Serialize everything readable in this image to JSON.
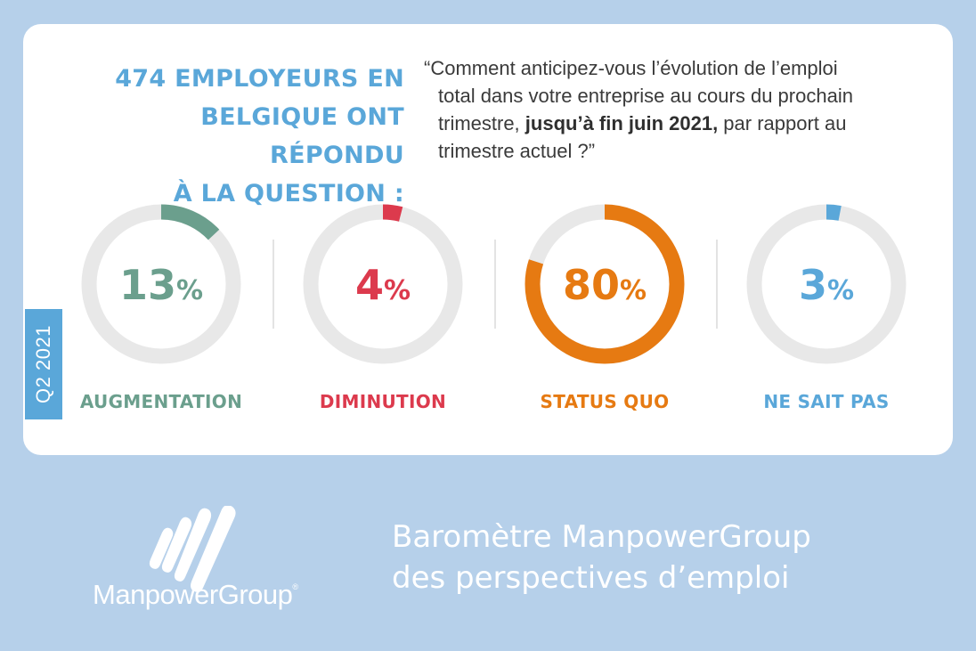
{
  "header": {
    "headline_lines": [
      "474 EMPLOYEURS EN",
      "BELGIQUE ONT RÉPONDU",
      "À LA QUESTION :"
    ],
    "question": {
      "line1": "“Comment anticipez-vous l’évolution de l’emploi",
      "line2": "total dans votre entreprise au cours du prochain",
      "line3_pre": "trimestre, ",
      "line3_bold": "jusqu’à fin juin 2021,",
      "line3_post": " par rapport au",
      "line4": "trimestre actuel ?”"
    }
  },
  "quarter_tab": "Q2 2021",
  "chart_data": {
    "type": "pie",
    "subtype": "donut-set",
    "series": [
      {
        "name": "AUGMENTATION",
        "value": 13,
        "display": "13%",
        "color": "#6b9f8d"
      },
      {
        "name": "DIMINUTION",
        "value": 4,
        "display": "4%",
        "color": "#dc3a4d"
      },
      {
        "name": "STATUS QUO",
        "value": 80,
        "display": "80%",
        "color": "#e67a12"
      },
      {
        "name": "NE SAIT PAS",
        "value": 3,
        "display": "3%",
        "color": "#5aa7d9"
      }
    ],
    "track_color": "#e8e8e8"
  },
  "footer": {
    "brand": "ManpowerGroup",
    "title_lines": [
      "Baromètre ManpowerGroup",
      "des perspectives d’emploi"
    ]
  }
}
